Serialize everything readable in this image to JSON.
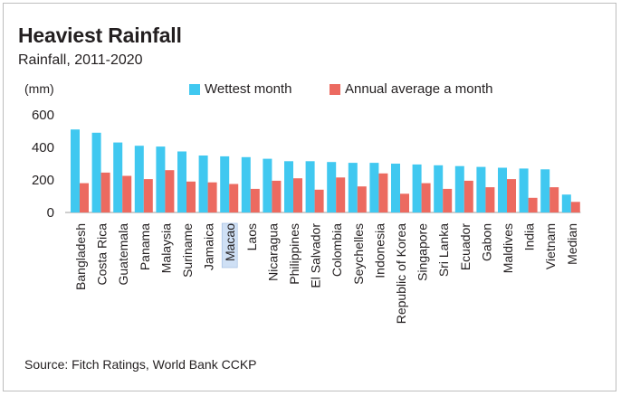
{
  "chart_data": {
    "type": "bar",
    "title": "Heaviest Rainfall",
    "subtitle": "Rainfall, 2011-2020",
    "ylabel": "(mm)",
    "ylim": [
      0,
      600
    ],
    "yticks": [
      0,
      200,
      400,
      600
    ],
    "grid": false,
    "legend_position": "top",
    "categories": [
      "Bangladesh",
      "Costa Rica",
      "Guatemala",
      "Panama",
      "Malaysia",
      "Suriname",
      "Jamaica",
      "Macao",
      "Laos",
      "Nicaragua",
      "Philippines",
      "El Salvador",
      "Colombia",
      "Seychelles",
      "Indonesia",
      "Republic of Korea",
      "Singapore",
      "Sri Lanka",
      "Ecuador",
      "Gabon",
      "Maldives",
      "India",
      "Vietnam",
      "Median"
    ],
    "highlighted_category": "Macao",
    "series": [
      {
        "name": "Wettest month",
        "color": "#40c8f0",
        "values": [
          510,
          490,
          430,
          410,
          405,
          375,
          350,
          345,
          340,
          330,
          315,
          315,
          310,
          305,
          305,
          300,
          295,
          290,
          285,
          280,
          275,
          270,
          265,
          110
        ]
      },
      {
        "name": "Annual average a month",
        "color": "#ec6a60",
        "values": [
          180,
          245,
          225,
          205,
          260,
          190,
          185,
          175,
          145,
          195,
          210,
          140,
          215,
          160,
          240,
          115,
          180,
          145,
          195,
          155,
          205,
          90,
          155,
          65
        ]
      }
    ],
    "source": "Source: Fitch Ratings, World Bank CCKP"
  }
}
